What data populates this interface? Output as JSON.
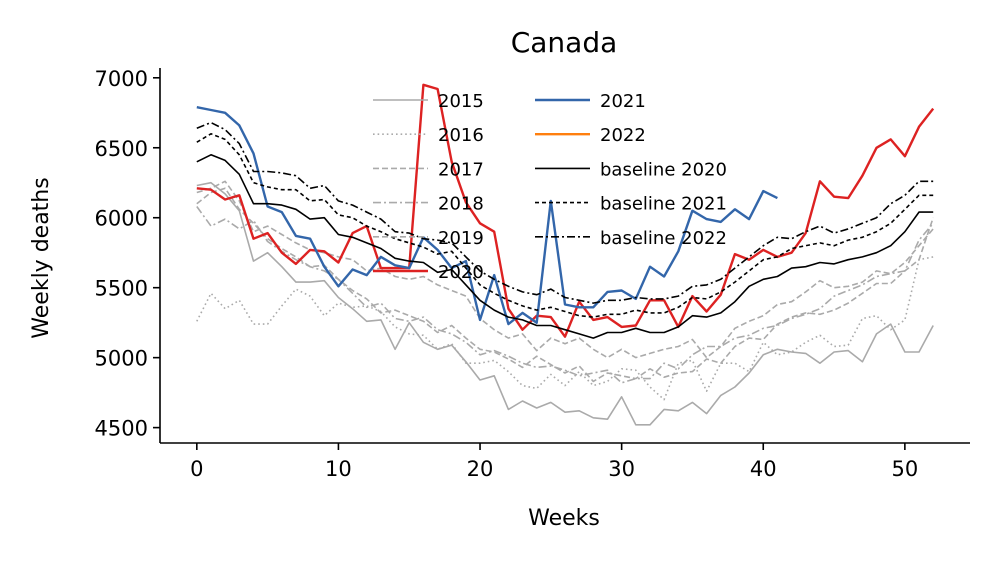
{
  "chart_data": {
    "type": "line",
    "title": "Canada",
    "xlabel": "Weeks",
    "ylabel": "Weekly deaths",
    "xlim": [
      -2.6,
      54.6
    ],
    "ylim": [
      4390,
      7070
    ],
    "xticks": [
      0,
      10,
      20,
      30,
      40,
      50
    ],
    "yticks": [
      4500,
      5000,
      5500,
      6000,
      6500,
      7000
    ],
    "grid": false,
    "legend_position": "top-center",
    "series": [
      {
        "name": "2015",
        "color": "#aaaaaa",
        "dash": "solid",
        "width": 1.6,
        "values": [
          6230,
          6250,
          6170,
          6050,
          5690,
          5750,
          5650,
          5540,
          5540,
          5550,
          5430,
          5350,
          5260,
          5270,
          5060,
          5250,
          5110,
          5060,
          5090,
          4970,
          4840,
          4870,
          4630,
          4690,
          4640,
          4680,
          4610,
          4620,
          4570,
          4560,
          4720,
          4520,
          4520,
          4630,
          4620,
          4680,
          4600,
          4730,
          4790,
          4890,
          5020,
          5060,
          5040,
          5030,
          4960,
          5040,
          5050,
          4970,
          5170,
          5240,
          5040,
          5040,
          5230
        ]
      },
      {
        "name": "2016",
        "color": "#aaaaaa",
        "dash": "1.6,3",
        "width": 1.6,
        "values": [
          5260,
          5460,
          5350,
          5410,
          5240,
          5240,
          5370,
          5490,
          5440,
          5300,
          5390,
          5360,
          5370,
          5330,
          5220,
          5170,
          5160,
          5060,
          5100,
          4960,
          4960,
          4980,
          4900,
          4800,
          4780,
          4880,
          4800,
          4900,
          4800,
          4830,
          4920,
          4910,
          4790,
          4700,
          4960,
          4980,
          4760,
          4960,
          4960,
          4900,
          5110,
          5020,
          5040,
          5110,
          5160,
          5080,
          5090,
          5280,
          5300,
          5200,
          5270,
          5700,
          5720
        ]
      },
      {
        "name": "2017",
        "color": "#aaaaaa",
        "dash": "6,3",
        "width": 1.6,
        "values": [
          6100,
          6180,
          6210,
          6060,
          5960,
          5850,
          5780,
          5720,
          5650,
          5660,
          5560,
          5480,
          5420,
          5320,
          5340,
          5300,
          5260,
          5180,
          5230,
          5140,
          5060,
          5040,
          4990,
          4930,
          5010,
          4950,
          4890,
          4940,
          4830,
          4890,
          4870,
          4850,
          4920,
          4860,
          4890,
          4900,
          4990,
          4960,
          5080,
          5140,
          5130,
          5240,
          5290,
          5320,
          5310,
          5340,
          5390,
          5460,
          5530,
          5530,
          5620,
          5700,
          6000
        ]
      },
      {
        "name": "2018",
        "color": "#aaaaaa",
        "dash": "8,3,2,3",
        "width": 1.6,
        "values": [
          6080,
          5940,
          5990,
          5920,
          5980,
          5830,
          5760,
          5700,
          5650,
          5620,
          5560,
          5460,
          5360,
          5390,
          5280,
          5260,
          5290,
          5200,
          5170,
          5110,
          5020,
          5050,
          5010,
          4960,
          4930,
          4940,
          4910,
          4870,
          4890,
          4910,
          4820,
          4850,
          4850,
          4960,
          4920,
          5020,
          5080,
          5080,
          5140,
          5160,
          5210,
          5230,
          5280,
          5310,
          5350,
          5440,
          5480,
          5520,
          5580,
          5600,
          5620,
          5840,
          5960
        ]
      },
      {
        "name": "2019",
        "color": "#aaaaaa",
        "dash": "6,3",
        "width": 1.6,
        "values": [
          6180,
          6210,
          6260,
          6120,
          5900,
          5940,
          5880,
          5820,
          5770,
          5750,
          5720,
          5700,
          5620,
          5640,
          5580,
          5560,
          5580,
          5520,
          5480,
          5440,
          5280,
          5200,
          5140,
          5170,
          5050,
          5140,
          5100,
          5140,
          5060,
          5000,
          5060,
          5000,
          5030,
          5060,
          5080,
          5130,
          5000,
          5080,
          5210,
          5260,
          5300,
          5380,
          5400,
          5470,
          5550,
          5500,
          5510,
          5540,
          5620,
          5600,
          5680,
          5800,
          5920
        ]
      },
      {
        "name": "2020",
        "color": "#dd2222",
        "dash": "solid",
        "width": 2.4,
        "values": [
          6210,
          6200,
          6130,
          6160,
          5850,
          5890,
          5750,
          5670,
          5770,
          5760,
          5680,
          5890,
          5940,
          5640,
          5640,
          5640,
          6950,
          6920,
          6400,
          6110,
          5960,
          5900,
          5350,
          5200,
          5300,
          5290,
          5150,
          5400,
          5270,
          5290,
          5220,
          5230,
          5410,
          5410,
          5220,
          5440,
          5330,
          5450,
          5740,
          5700,
          5770,
          5720,
          5750,
          5890,
          6260,
          6150,
          6140,
          6300,
          6500,
          6560,
          6440,
          6650,
          6780
        ]
      },
      {
        "name": "2021",
        "color": "#3366aa",
        "dash": "solid",
        "width": 2.4,
        "values": [
          6790,
          6770,
          6750,
          6660,
          6460,
          6080,
          6040,
          5870,
          5850,
          5650,
          5510,
          5630,
          5590,
          5720,
          5660,
          5640,
          5860,
          5770,
          5640,
          5690,
          5270,
          5590,
          5240,
          5320,
          5250,
          6120,
          5380,
          5360,
          5360,
          5470,
          5480,
          5420,
          5650,
          5580,
          5760,
          6050,
          5990,
          5970,
          6060,
          5990,
          6190,
          6140
        ]
      },
      {
        "name": "2022",
        "color": "#ff7f0e",
        "dash": "solid",
        "width": 2.4,
        "values": []
      },
      {
        "name": "baseline 2020",
        "color": "#000000",
        "dash": "solid",
        "width": 1.6,
        "values": [
          6400,
          6450,
          6410,
          6310,
          6100,
          6100,
          6090,
          6060,
          5990,
          6000,
          5880,
          5860,
          5820,
          5780,
          5710,
          5690,
          5680,
          5610,
          5630,
          5520,
          5410,
          5340,
          5290,
          5270,
          5230,
          5230,
          5200,
          5170,
          5140,
          5180,
          5180,
          5210,
          5180,
          5180,
          5220,
          5300,
          5290,
          5320,
          5400,
          5510,
          5560,
          5580,
          5640,
          5650,
          5680,
          5670,
          5700,
          5720,
          5750,
          5800,
          5900,
          6040,
          6040
        ]
      },
      {
        "name": "baseline 2021",
        "color": "#000000",
        "dash": "4,3",
        "width": 1.6,
        "values": [
          6540,
          6600,
          6560,
          6450,
          6250,
          6220,
          6200,
          6200,
          6120,
          6130,
          6020,
          6000,
          5940,
          5900,
          5850,
          5820,
          5790,
          5740,
          5760,
          5640,
          5520,
          5460,
          5410,
          5370,
          5340,
          5360,
          5330,
          5300,
          5290,
          5310,
          5310,
          5340,
          5320,
          5320,
          5360,
          5430,
          5420,
          5470,
          5540,
          5620,
          5700,
          5720,
          5780,
          5800,
          5820,
          5800,
          5840,
          5860,
          5900,
          5960,
          6060,
          6160,
          6160
        ]
      },
      {
        "name": "baseline 2022",
        "color": "#000000",
        "dash": "8,3,2,3",
        "width": 1.6,
        "values": [
          6640,
          6680,
          6630,
          6530,
          6330,
          6330,
          6320,
          6300,
          6210,
          6230,
          6120,
          6090,
          6040,
          5990,
          5900,
          5890,
          5850,
          5840,
          5820,
          5720,
          5620,
          5560,
          5510,
          5470,
          5450,
          5490,
          5430,
          5410,
          5390,
          5410,
          5410,
          5430,
          5420,
          5420,
          5440,
          5510,
          5520,
          5560,
          5640,
          5720,
          5800,
          5860,
          5850,
          5900,
          5940,
          5890,
          5920,
          5960,
          6000,
          6100,
          6160,
          6260,
          6260
        ]
      }
    ]
  }
}
